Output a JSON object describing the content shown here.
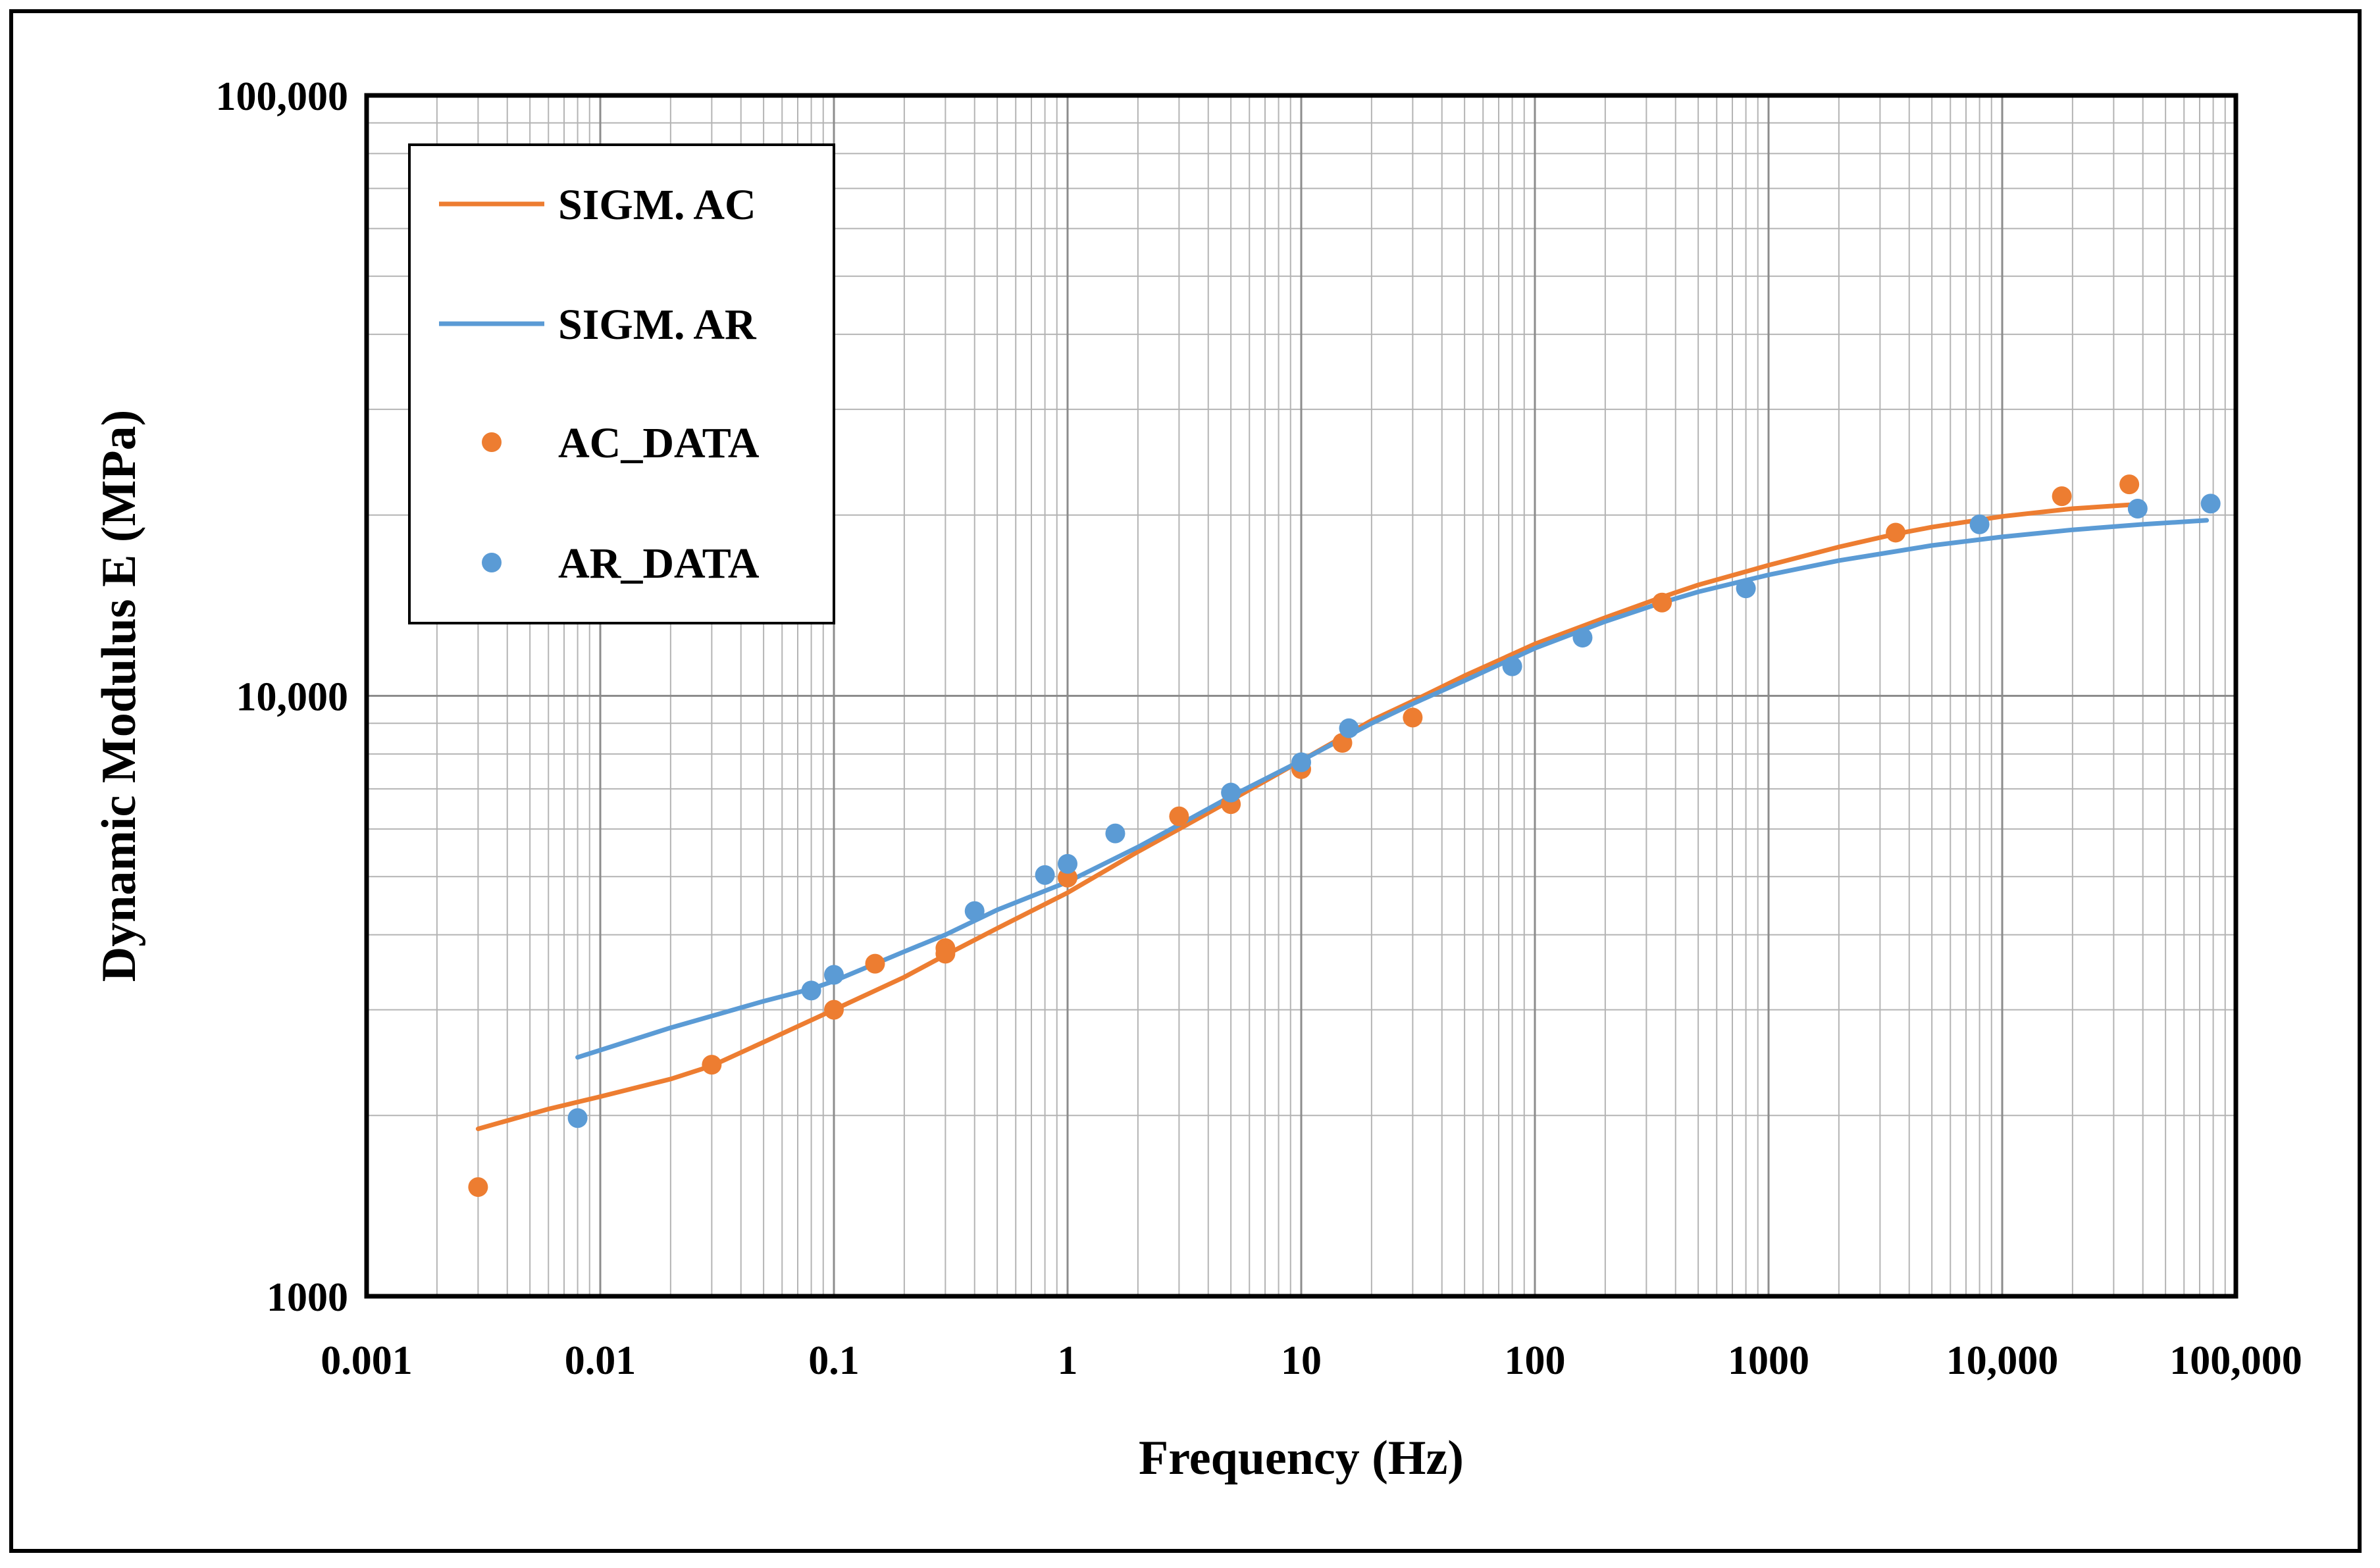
{
  "chart_data": {
    "type": "scatter",
    "xscale": "log",
    "yscale": "log",
    "xlim": [
      0.001,
      100000
    ],
    "ylim": [
      1000,
      100000
    ],
    "xlabel": "Frequency (Hz)",
    "ylabel": "Dynamic Modulus E (MPa)",
    "xtick_labels": [
      "0.001",
      "0.01",
      "0.1",
      "1",
      "10",
      "100",
      "1000",
      "10,000",
      "100,000"
    ],
    "ytick_labels": [
      "1000",
      "10,000",
      "100,000"
    ],
    "grid": true,
    "legend_position": "top-left",
    "colors": {
      "ac": "#ED7D31",
      "ar": "#5B9BD5"
    },
    "series": [
      {
        "name": "SIGM. AC",
        "kind": "line",
        "color": "#ED7D31",
        "x": [
          0.003,
          0.006,
          0.01,
          0.02,
          0.03,
          0.05,
          0.1,
          0.2,
          0.3,
          0.5,
          1,
          2,
          3,
          5,
          10,
          20,
          30,
          50,
          100,
          200,
          350,
          500,
          1000,
          2000,
          3500,
          5000,
          10000,
          20000,
          35000
        ],
        "y": [
          1900,
          2050,
          2150,
          2300,
          2420,
          2650,
          3000,
          3400,
          3700,
          4100,
          4700,
          5500,
          6000,
          6700,
          7800,
          9100,
          9800,
          10800,
          12200,
          13500,
          14600,
          15300,
          16500,
          17700,
          18600,
          19100,
          19900,
          20500,
          20800
        ]
      },
      {
        "name": "SIGM. AR",
        "kind": "line",
        "color": "#5B9BD5",
        "x": [
          0.008,
          0.02,
          0.05,
          0.08,
          0.1,
          0.2,
          0.3,
          0.5,
          1,
          2,
          3,
          5,
          10,
          20,
          30,
          50,
          100,
          200,
          350,
          500,
          1000,
          2000,
          3500,
          5000,
          10000,
          20000,
          40000,
          75000
        ],
        "y": [
          2500,
          2800,
          3100,
          3250,
          3350,
          3750,
          4000,
          4400,
          4900,
          5600,
          6100,
          6800,
          7800,
          9000,
          9700,
          10600,
          12000,
          13300,
          14300,
          14900,
          15900,
          16800,
          17400,
          17800,
          18400,
          18900,
          19300,
          19600
        ]
      },
      {
        "name": "AC_DATA",
        "kind": "points",
        "color": "#ED7D31",
        "x": [
          0.003,
          0.03,
          0.1,
          0.15,
          0.3,
          0.3,
          1,
          3,
          5,
          10,
          15,
          30,
          350,
          3500,
          18000,
          35000
        ],
        "y": [
          1520,
          2430,
          3000,
          3580,
          3800,
          3720,
          4980,
          6300,
          6600,
          7550,
          8350,
          9200,
          14300,
          18700,
          21500,
          22500
        ]
      },
      {
        "name": "AR_DATA",
        "kind": "points",
        "color": "#5B9BD5",
        "x": [
          0.008,
          0.08,
          0.1,
          0.4,
          0.8,
          1,
          1.6,
          5,
          10,
          16,
          80,
          160,
          800,
          8000,
          38000,
          78000
        ],
        "y": [
          1980,
          3230,
          3430,
          4380,
          5030,
          5250,
          5900,
          6900,
          7750,
          8830,
          11200,
          12500,
          15100,
          19300,
          20500,
          20900
        ]
      }
    ]
  }
}
